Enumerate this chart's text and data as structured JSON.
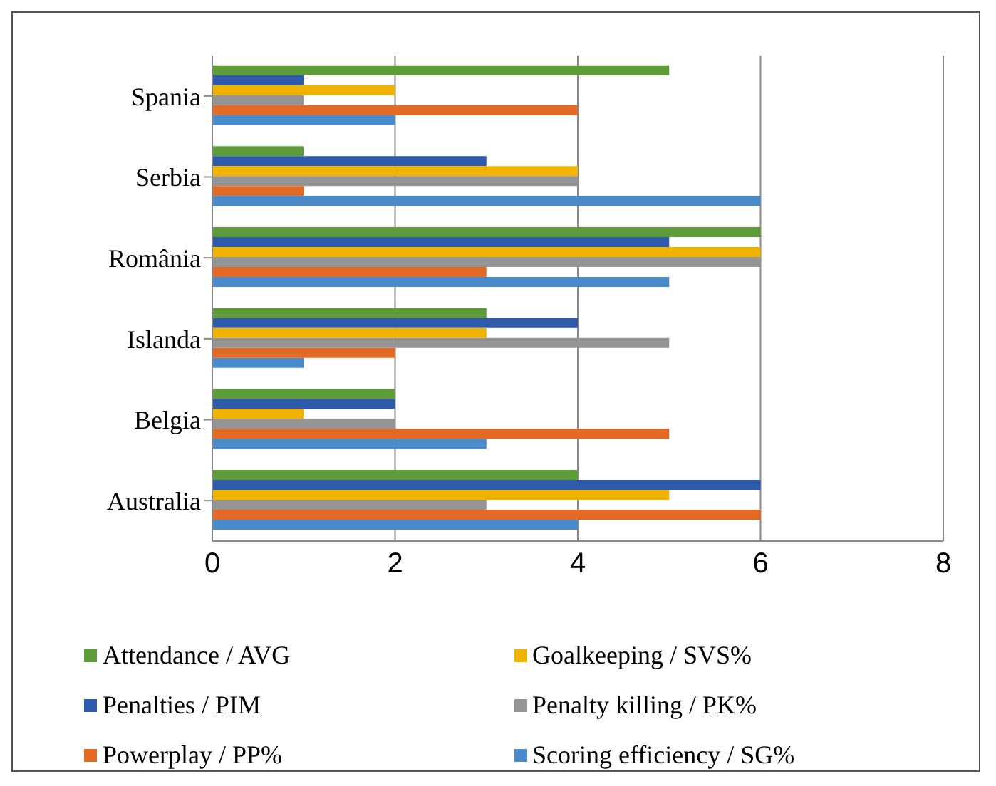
{
  "chart_data": {
    "type": "bar",
    "orientation": "horizontal",
    "categories": [
      "Spania",
      "Serbia",
      "România",
      "Islanda",
      "Belgia",
      "Australia"
    ],
    "series": [
      {
        "name": "Attendance / AVG",
        "color": "#5e9c3a",
        "values": [
          5,
          1,
          6,
          3,
          2,
          4
        ]
      },
      {
        "name": "Penalties / PIM",
        "color": "#2e5aac",
        "values": [
          1,
          3,
          5,
          4,
          2,
          6
        ]
      },
      {
        "name": "Goalkeeping / SVS%",
        "color": "#f0b400",
        "values": [
          2,
          4,
          6,
          3,
          1,
          5
        ]
      },
      {
        "name": "Penalty killing / PK%",
        "color": "#959595",
        "values": [
          1,
          4,
          6,
          5,
          2,
          3
        ]
      },
      {
        "name": "Powerplay / PP%",
        "color": "#e26a24",
        "values": [
          4,
          1,
          3,
          2,
          5,
          6
        ]
      },
      {
        "name": "Scoring efficiency / SG%",
        "color": "#4a8ccb",
        "values": [
          2,
          6,
          5,
          1,
          3,
          4
        ]
      }
    ],
    "xlim": [
      0,
      8
    ],
    "xticks": [
      0,
      2,
      4,
      6,
      8
    ],
    "grid": "x",
    "legend": "bottom"
  }
}
